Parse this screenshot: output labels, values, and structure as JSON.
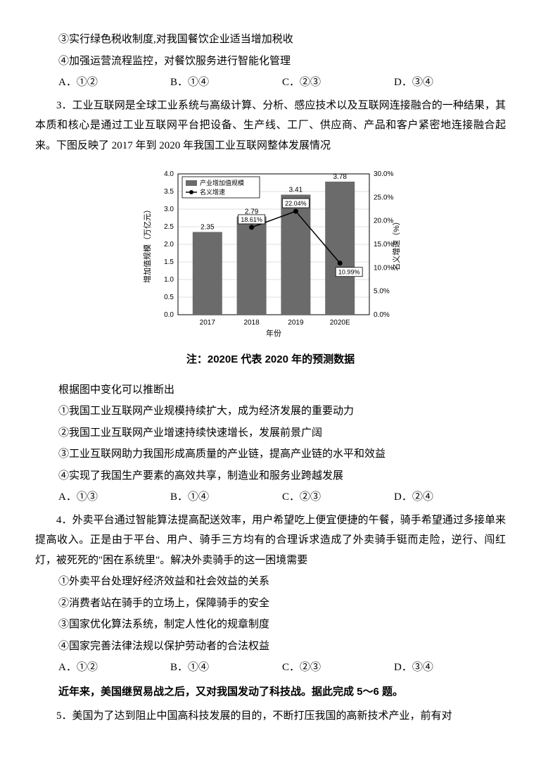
{
  "q2_tail": {
    "opt3": "③实行绿色税收制度,对我国餐饮企业适当增加税收",
    "opt4": "④加强运营流程监控，对餐饮服务进行智能化管理",
    "A": "A．①②",
    "B": "B．①④",
    "C": "C．②③",
    "D": "D．③④"
  },
  "q3": {
    "stem": "3．工业互联网是全球工业系统与高级计算、分析、感应技术以及互联网连接融合的一种结果，其本质和核心是通过工业互联网平台把设备、生产线、工厂、供应商、产品和客户紧密地连接融合起来。下图反映了 2017 年到 2020 年我国工业互联网整体发展情况",
    "chart": {
      "type": "bar+line",
      "categories": [
        "2017",
        "2018",
        "2019",
        "2020E"
      ],
      "bar_values": [
        2.35,
        2.79,
        3.41,
        3.78
      ],
      "bar_labels": [
        "2.35",
        "2.79",
        "3.41",
        "3.78"
      ],
      "line_values": [
        null,
        18.61,
        22.04,
        10.99
      ],
      "line_labels": [
        "",
        "18.61%",
        "22.04%",
        "10.99%"
      ],
      "legend": [
        "产业增加值规模",
        "名义增速"
      ],
      "y_left_label": "增加值规模（万亿元）",
      "y_right_label": "名义增速（%）",
      "x_label": "年份",
      "y_left_lim": [
        0,
        4
      ],
      "y_left_step": 0.5,
      "y_right_lim": [
        0,
        30
      ],
      "y_right_step": 5,
      "bar_color": "#6b6b6b",
      "line_color": "#000000",
      "marker": "circle",
      "grid_color": "#bfbfbf",
      "background": "#ffffff",
      "label_fontsize": 10,
      "axis_fontsize": 10
    },
    "note": "注：2020E 代表 2020 年的预测数据",
    "stem2": "根据图中变化可以推断出",
    "opt1": "①我国工业互联网产业规模持续扩大，成为经济发展的重要动力",
    "opt2": "②我国工业互联网产业增速持续快速增长，发展前景广阔",
    "opt3": "③工业互联网助力我国形成高质量的产业链，提高产业链的水平和效益",
    "opt4": "④实现了我国生产要素的高效共享，制造业和服务业跨越发展",
    "A": "A．①③",
    "B": "B．①④",
    "C": "C．②③",
    "D": "D．②④"
  },
  "q4": {
    "stem": "4．外卖平台通过智能算法提高配送效率，用户希望吃上便宜便捷的午餐，骑手希望通过多接单来提高收入。正是由于平台、用户、骑手三方均有的合理诉求造成了外卖骑手铤而走险，逆行、闯红灯，被死死的\"困在系统里\"。解决外卖骑手的这一困境需要",
    "opt1": "①外卖平台处理好经济效益和社会效益的关系",
    "opt2": "②消费者站在骑手的立场上，保障骑手的安全",
    "opt3": "③国家优化算法系统，制定人性化的规章制度",
    "opt4": "④国家完善法律法规以保护劳动者的合法权益",
    "A": "A．①②",
    "B": "B．①④",
    "C": "C．②③",
    "D": "D．③④"
  },
  "q56_intro": "近年来，美国继贸易战之后，又对我国发动了科技战。据此完成 5～6 题。",
  "q5": {
    "stem": "5．美国为了达到阻止中国高科技发展的目的，不断打压我国的高新技术产业，前有对"
  }
}
